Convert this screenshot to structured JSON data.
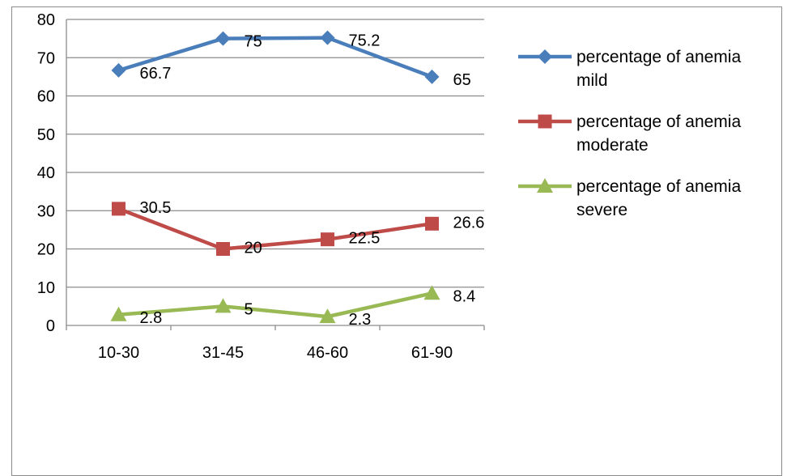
{
  "chart_data": {
    "type": "line",
    "categories": [
      "10-30",
      "31-45",
      "46-60",
      "61-90"
    ],
    "y_ticks": [
      "0",
      "10",
      "20",
      "30",
      "40",
      "50",
      "60",
      "70",
      "80"
    ],
    "ylim": [
      0,
      80
    ],
    "grid": true,
    "legend_position": "right",
    "series": [
      {
        "name_line1": "percentage of anemia",
        "name_line2": "mild",
        "values": [
          66.7,
          75,
          75.2,
          65
        ],
        "labels": [
          "66.7",
          "75",
          "75.2",
          "65"
        ],
        "color": "#4a7ebb",
        "marker": "diamond"
      },
      {
        "name_line1": "percentage of anemia",
        "name_line2": "moderate",
        "values": [
          30.5,
          20,
          22.5,
          26.6
        ],
        "labels": [
          "30.5",
          "20",
          "22.5",
          "26.6"
        ],
        "color": "#be4b48",
        "marker": "square"
      },
      {
        "name_line1": "percentage of anemia",
        "name_line2": "severe",
        "values": [
          2.8,
          5,
          2.3,
          8.4
        ],
        "labels": [
          "2.8",
          "5",
          "2.3",
          "8.4"
        ],
        "color": "#98b954",
        "marker": "triangle"
      }
    ]
  }
}
